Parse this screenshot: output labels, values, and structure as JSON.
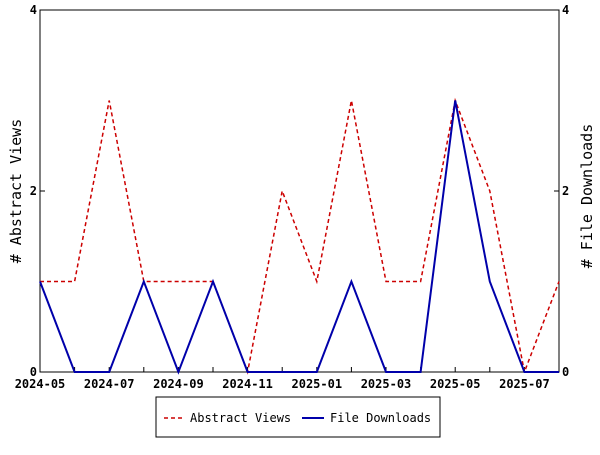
{
  "chart_data": {
    "type": "line",
    "x": [
      "2024-05",
      "2024-06",
      "2024-07",
      "2024-08",
      "2024-09",
      "2024-10",
      "2024-11",
      "2024-12",
      "2025-01",
      "2025-02",
      "2025-03",
      "2025-04",
      "2025-05",
      "2025-06",
      "2025-07",
      "2025-08"
    ],
    "x_tick_labels": [
      "2024-05",
      "2024-07",
      "2024-09",
      "2024-11",
      "2025-01",
      "2025-03",
      "2025-05",
      "2025-07"
    ],
    "series": [
      {
        "name": "Abstract Views",
        "axis": "left",
        "color": "#cc0000",
        "style": "dashed",
        "values": [
          1,
          1,
          3,
          1,
          1,
          1,
          0,
          2,
          1,
          3,
          1,
          1,
          3,
          2,
          0,
          1
        ]
      },
      {
        "name": "File Downloads",
        "axis": "right",
        "color": "#0000aa",
        "style": "solid",
        "values": [
          1,
          0,
          0,
          1,
          0,
          1,
          0,
          0,
          0,
          1,
          0,
          0,
          3,
          1,
          0,
          0
        ]
      }
    ],
    "ylabel_left": "# Abstract Views",
    "ylabel_right": "# File Downloads",
    "ylim_left": [
      0,
      4
    ],
    "ylim_right": [
      0,
      4
    ],
    "y_ticks_left": [
      "0",
      "2",
      "4"
    ],
    "y_ticks_right": [
      "0",
      "2",
      "4"
    ],
    "grid": false,
    "legend_position": "bottom"
  }
}
